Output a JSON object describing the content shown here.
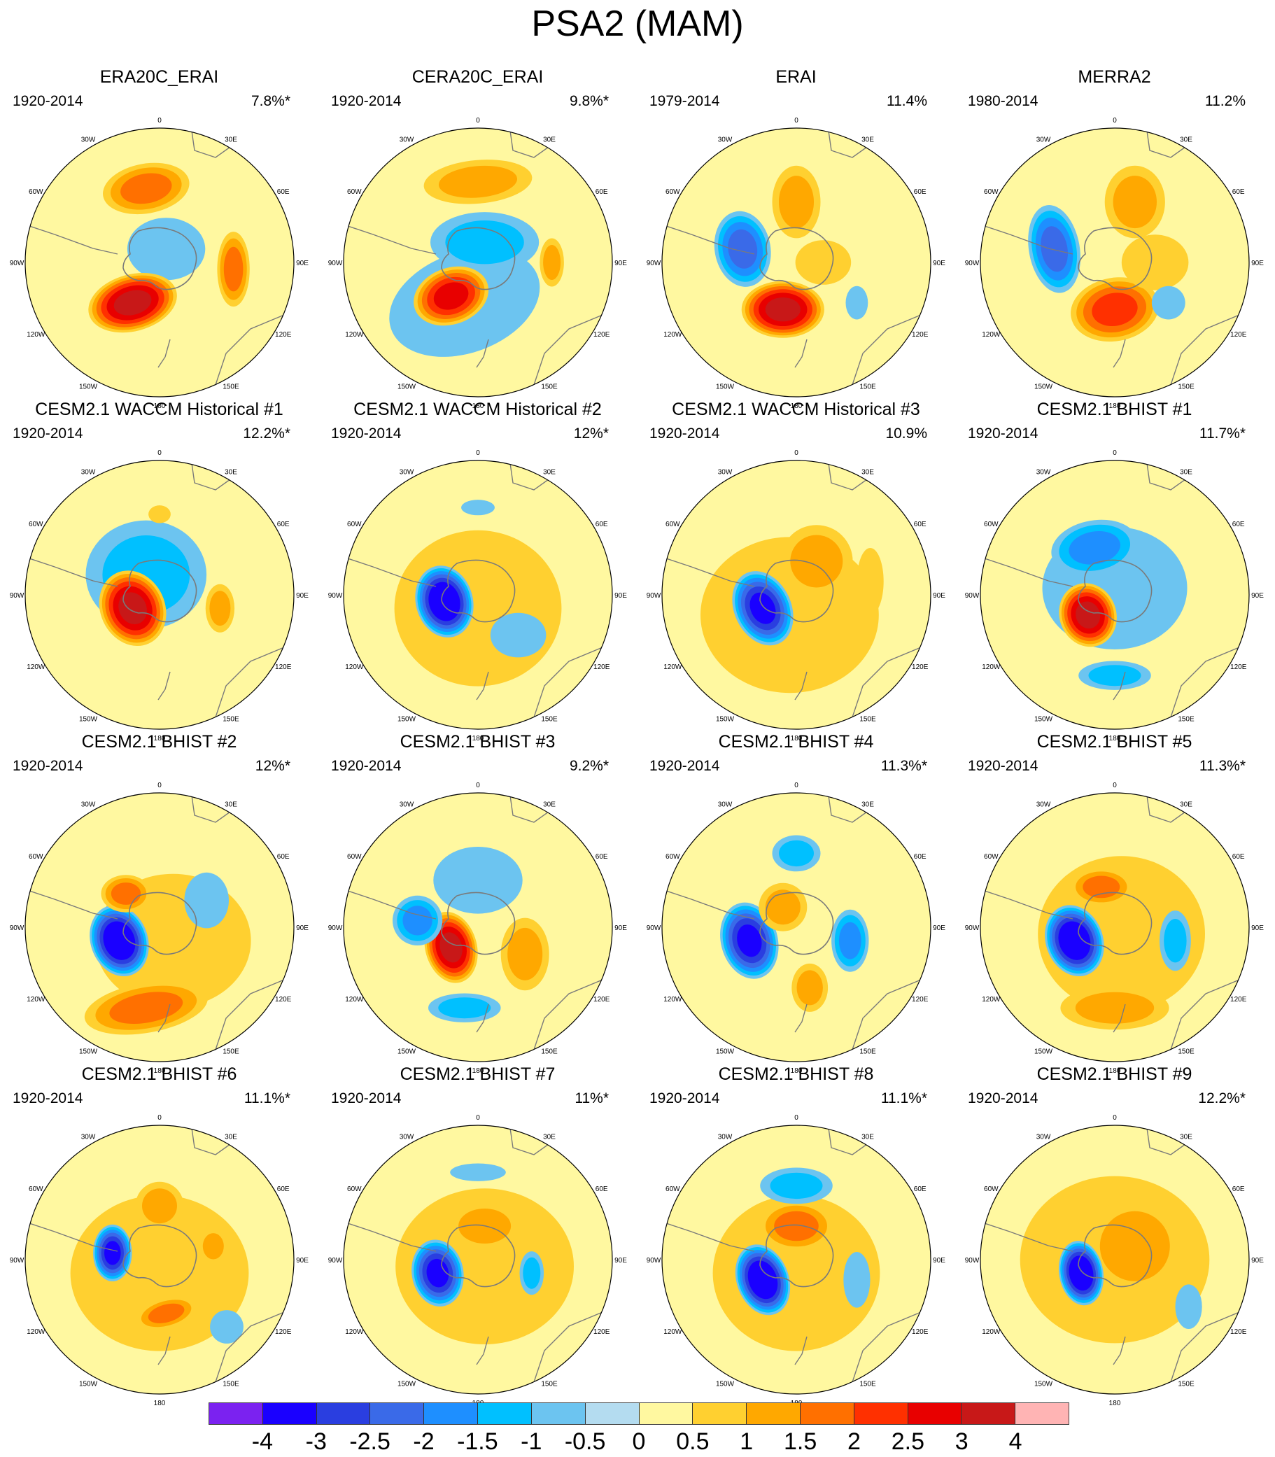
{
  "title": "PSA2 (MAM)",
  "tick_labels": {
    "top": "0",
    "bottom": "180",
    "left_upper": "60W",
    "left_mid": "90W",
    "left_lower": "120W",
    "right_upper": "60E",
    "right_mid": "90E",
    "right_lower": "120E",
    "top_left": "30W",
    "top_right": "30E",
    "bottom_left": "150W",
    "bottom_right": "150E"
  },
  "panels": [
    {
      "title": "ERA20C_ERAI",
      "period": "1920-2014",
      "variance": "7.8%*",
      "blobs": [
        [
          -0.1,
          -0.55,
          0.35,
          0.2,
          1.5,
          -10
        ],
        [
          -0.2,
          0.3,
          0.35,
          0.22,
          3,
          -15
        ],
        [
          0.55,
          0.05,
          0.13,
          0.3,
          1.5,
          0
        ],
        [
          0.05,
          -0.1,
          0.35,
          0.28,
          -0.5,
          0
        ]
      ]
    },
    {
      "title": "CERA20C_ERAI",
      "period": "1920-2014",
      "variance": "9.8%*",
      "blobs": [
        [
          0.0,
          -0.6,
          0.45,
          0.18,
          1,
          -5
        ],
        [
          -0.2,
          0.25,
          0.3,
          0.22,
          2.5,
          -20
        ],
        [
          0.05,
          -0.15,
          0.45,
          0.25,
          -1,
          0
        ],
        [
          -0.1,
          0.3,
          0.7,
          0.45,
          -0.5,
          -20
        ],
        [
          0.55,
          0.0,
          0.1,
          0.2,
          1,
          0
        ]
      ]
    },
    {
      "title": "ERAI",
      "period": "1979-2014",
      "variance": "11.4%",
      "blobs": [
        [
          -0.4,
          -0.1,
          0.22,
          0.3,
          -2,
          -10
        ],
        [
          0.0,
          -0.45,
          0.2,
          0.3,
          1,
          0
        ],
        [
          -0.1,
          0.35,
          0.32,
          0.22,
          3,
          0
        ],
        [
          0.45,
          0.3,
          0.1,
          0.15,
          -0.5,
          0
        ],
        [
          0.2,
          0.0,
          0.25,
          0.2,
          0.5,
          0
        ]
      ]
    },
    {
      "title": "MERRA2",
      "period": "1980-2014",
      "variance": "11.2%",
      "blobs": [
        [
          -0.45,
          -0.1,
          0.2,
          0.35,
          -2,
          -10
        ],
        [
          0.15,
          -0.45,
          0.25,
          0.3,
          1,
          0
        ],
        [
          0.0,
          0.35,
          0.35,
          0.25,
          2,
          -10
        ],
        [
          0.3,
          0.0,
          0.3,
          0.25,
          0.5,
          0
        ],
        [
          0.4,
          0.3,
          0.15,
          0.15,
          -0.5,
          0
        ]
      ]
    },
    {
      "title": "CESM2.1 WACCM Historical #1",
      "period": "1920-2014",
      "variance": "12.2%*",
      "blobs": [
        [
          -0.2,
          0.1,
          0.25,
          0.3,
          3,
          -25
        ],
        [
          -0.1,
          -0.15,
          0.5,
          0.45,
          -1,
          0
        ],
        [
          0.45,
          0.1,
          0.12,
          0.2,
          1,
          0
        ],
        [
          0.0,
          -0.6,
          0.1,
          0.08,
          0.5,
          0
        ]
      ]
    },
    {
      "title": "CESM2.1 WACCM Historical #2",
      "period": "1920-2014",
      "variance": "12%*",
      "blobs": [
        [
          -0.25,
          0.05,
          0.22,
          0.28,
          -3.5,
          -15
        ],
        [
          0.0,
          0.1,
          0.75,
          0.7,
          0.5,
          0
        ],
        [
          0.3,
          0.3,
          0.25,
          0.2,
          -0.5,
          0
        ],
        [
          0.0,
          -0.65,
          0.15,
          0.07,
          -0.5,
          0
        ]
      ]
    },
    {
      "title": "CESM2.1 WACCM Historical #3",
      "period": "1920-2014",
      "variance": "10.9%",
      "blobs": [
        [
          -0.25,
          0.1,
          0.22,
          0.3,
          -3,
          -25
        ],
        [
          0.15,
          -0.25,
          0.3,
          0.3,
          1,
          0
        ],
        [
          -0.05,
          0.15,
          0.8,
          0.7,
          0.5,
          0
        ],
        [
          0.55,
          -0.1,
          0.12,
          0.3,
          0.5,
          0
        ]
      ]
    },
    {
      "title": "CESM2.1 BHIST #1",
      "period": "1920-2014",
      "variance": "11.7%*",
      "blobs": [
        [
          -0.15,
          -0.35,
          0.35,
          0.22,
          -1.5,
          -10
        ],
        [
          -0.2,
          0.15,
          0.22,
          0.25,
          3,
          -20
        ],
        [
          0.0,
          -0.05,
          0.65,
          0.55,
          -0.5,
          0
        ],
        [
          0.0,
          0.6,
          0.3,
          0.12,
          -1,
          0
        ]
      ]
    },
    {
      "title": "CESM2.1 BHIST #2",
      "period": "1920-2014",
      "variance": "12%*",
      "blobs": [
        [
          -0.3,
          0.1,
          0.22,
          0.28,
          -3.5,
          -20
        ],
        [
          -0.25,
          -0.25,
          0.2,
          0.15,
          1.5,
          0
        ],
        [
          -0.1,
          0.6,
          0.5,
          0.2,
          1.5,
          -10
        ],
        [
          0.35,
          -0.2,
          0.2,
          0.25,
          -0.5,
          0
        ],
        [
          0.1,
          0.1,
          0.7,
          0.6,
          0.5,
          0
        ]
      ]
    },
    {
      "title": "CESM2.1 BHIST #3",
      "period": "1920-2014",
      "variance": "9.2%*",
      "blobs": [
        [
          -0.2,
          0.15,
          0.2,
          0.28,
          3,
          -15
        ],
        [
          -0.45,
          -0.05,
          0.2,
          0.2,
          -1.5,
          0
        ],
        [
          0.0,
          -0.35,
          0.4,
          0.3,
          -0.5,
          0
        ],
        [
          0.35,
          0.2,
          0.2,
          0.3,
          1,
          0
        ],
        [
          -0.1,
          0.6,
          0.3,
          0.12,
          -1,
          0
        ]
      ]
    },
    {
      "title": "CESM2.1 BHIST #4",
      "period": "1920-2014",
      "variance": "11.3%*",
      "blobs": [
        [
          -0.35,
          0.1,
          0.22,
          0.3,
          -3,
          -15
        ],
        [
          0.0,
          -0.55,
          0.2,
          0.15,
          -1,
          0
        ],
        [
          0.4,
          0.1,
          0.15,
          0.25,
          -1.5,
          0
        ],
        [
          0.1,
          0.45,
          0.15,
          0.2,
          1,
          0
        ],
        [
          -0.1,
          -0.15,
          0.2,
          0.2,
          1,
          0
        ]
      ]
    },
    {
      "title": "CESM2.1 BHIST #5",
      "period": "1920-2014",
      "variance": "11.3%*",
      "blobs": [
        [
          -0.3,
          0.1,
          0.22,
          0.28,
          -3.5,
          -20
        ],
        [
          -0.1,
          -0.3,
          0.25,
          0.15,
          1.5,
          0
        ],
        [
          0.45,
          0.1,
          0.13,
          0.25,
          -1,
          0
        ],
        [
          0.0,
          0.6,
          0.45,
          0.18,
          1,
          0
        ],
        [
          0.05,
          0.05,
          0.75,
          0.7,
          0.5,
          0
        ]
      ]
    },
    {
      "title": "CESM2.1 BHIST #6",
      "period": "1920-2014",
      "variance": "11.1%*",
      "blobs": [
        [
          -0.35,
          -0.05,
          0.15,
          0.22,
          -3,
          0
        ],
        [
          0.0,
          -0.4,
          0.2,
          0.2,
          1,
          0
        ],
        [
          0.05,
          0.4,
          0.25,
          0.12,
          1.5,
          -15
        ],
        [
          0.4,
          -0.1,
          0.12,
          0.15,
          1,
          0
        ],
        [
          0.5,
          0.5,
          0.15,
          0.15,
          -0.5,
          0
        ],
        [
          0.0,
          0.1,
          0.8,
          0.7,
          0.5,
          0
        ]
      ]
    },
    {
      "title": "CESM2.1 BHIST #7",
      "period": "1920-2014",
      "variance": "11%*",
      "blobs": [
        [
          -0.3,
          0.1,
          0.2,
          0.26,
          -3,
          -10
        ],
        [
          0.05,
          -0.25,
          0.3,
          0.2,
          1,
          0
        ],
        [
          0.4,
          0.1,
          0.1,
          0.18,
          -1,
          0
        ],
        [
          0.0,
          -0.65,
          0.25,
          0.08,
          -0.5,
          0
        ],
        [
          0.05,
          0.05,
          0.8,
          0.7,
          0.5,
          0
        ]
      ]
    },
    {
      "title": "CESM2.1 BHIST #8",
      "period": "1920-2014",
      "variance": "11.1%*",
      "blobs": [
        [
          -0.25,
          0.15,
          0.2,
          0.28,
          -3.5,
          -20
        ],
        [
          0.0,
          -0.55,
          0.3,
          0.15,
          -1,
          0
        ],
        [
          0.0,
          -0.25,
          0.3,
          0.2,
          1.5,
          0
        ],
        [
          0.45,
          0.15,
          0.12,
          0.25,
          -0.5,
          0
        ],
        [
          0.0,
          0.1,
          0.75,
          0.7,
          0.5,
          0
        ]
      ]
    },
    {
      "title": "CESM2.1 BHIST #9",
      "period": "1920-2014",
      "variance": "12.2%*",
      "blobs": [
        [
          -0.25,
          0.1,
          0.17,
          0.25,
          -3.5,
          -10
        ],
        [
          0.15,
          -0.1,
          0.4,
          0.4,
          1,
          0
        ],
        [
          0.0,
          0.0,
          0.85,
          0.75,
          0.5,
          0
        ],
        [
          0.55,
          0.35,
          0.12,
          0.2,
          -0.5,
          0
        ]
      ]
    }
  ],
  "colorbar": {
    "colors": [
      "#7b22f0",
      "#1a00ff",
      "#2a3ee0",
      "#3a6ae8",
      "#1e8fff",
      "#00c0ff",
      "#6cc4f0",
      "#b4dcf0",
      "#fff8a0",
      "#ffd030",
      "#ffa800",
      "#ff7000",
      "#ff3000",
      "#e80000",
      "#c81818",
      "#ffb4b4"
    ],
    "labels": [
      "-4",
      "-3",
      "-2.5",
      "-2",
      "-1.5",
      "-1",
      "-0.5",
      "0",
      "0.5",
      "1",
      "1.5",
      "2",
      "2.5",
      "3",
      "4"
    ]
  }
}
